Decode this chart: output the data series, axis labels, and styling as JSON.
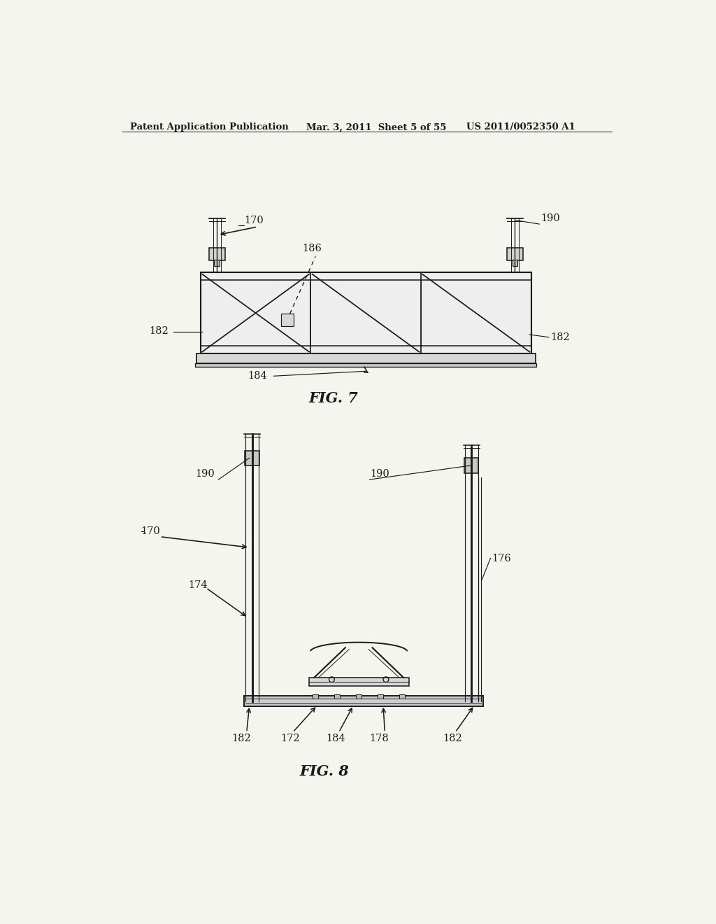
{
  "background_color": "#f5f5f0",
  "header_left": "Patent Application Publication",
  "header_center": "Mar. 3, 2011  Sheet 5 of 55",
  "header_right": "US 2011/0052350 A1",
  "header_fontsize": 9.5,
  "fig7_label": "FIG. 7",
  "fig8_label": "FIG. 8",
  "line_color": "#1a1a1a",
  "line_width": 1.4,
  "annotation_fontsize": 10.5,
  "fig_label_fontsize": 15
}
